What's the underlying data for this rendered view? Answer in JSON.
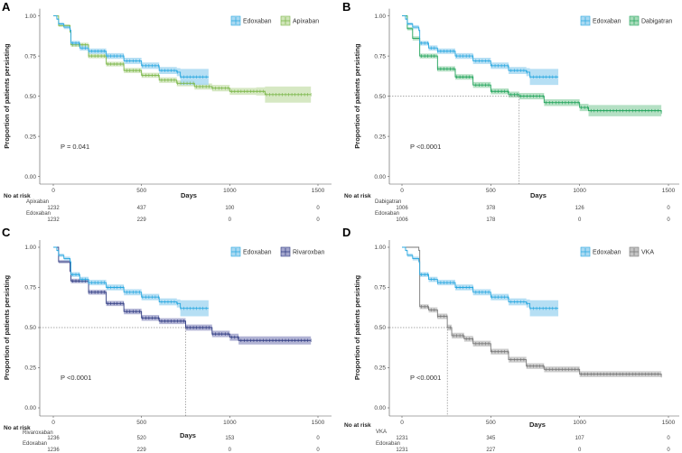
{
  "chart_data": [
    {
      "type": "line",
      "subtype": "kaplan-meier",
      "panel": "A",
      "xlabel": "Days",
      "ylabel": "Proportion of patients persisting",
      "xlim": [
        0,
        1500
      ],
      "ylim": [
        0,
        1
      ],
      "xticks": [
        "0",
        "500",
        "1000",
        "1500"
      ],
      "yticks": [
        "0.00",
        "0.25",
        "0.50",
        "0.75",
        "1.00"
      ],
      "p_value": "P = 0.041",
      "median_days": null,
      "legend_position": "top-right",
      "series": [
        {
          "name": "Edoxaban",
          "color": "#29a8e0",
          "band_color": "#a9d9f2",
          "points": [
            [
              0,
              1
            ],
            [
              20,
              0.98
            ],
            [
              30,
              0.95
            ],
            [
              60,
              0.93
            ],
            [
              95,
              0.91
            ],
            [
              100,
              0.83
            ],
            [
              150,
              0.8
            ],
            [
              200,
              0.78
            ],
            [
              300,
              0.75
            ],
            [
              400,
              0.72
            ],
            [
              500,
              0.69
            ],
            [
              600,
              0.66
            ],
            [
              700,
              0.65
            ],
            [
              720,
              0.62
            ],
            [
              880,
              0.62
            ]
          ],
          "ci": [
            0,
            0.005,
            0.01,
            0.012,
            0.014,
            0.015,
            0.016,
            0.017,
            0.018,
            0.019,
            0.02,
            0.022,
            0.025,
            0.05,
            0.06
          ]
        },
        {
          "name": "Apixaban",
          "color": "#7ab648",
          "band_color": "#cfe4b8",
          "points": [
            [
              0,
              1
            ],
            [
              30,
              0.94
            ],
            [
              95,
              0.9
            ],
            [
              100,
              0.82
            ],
            [
              200,
              0.75
            ],
            [
              300,
              0.7
            ],
            [
              400,
              0.66
            ],
            [
              500,
              0.63
            ],
            [
              600,
              0.6
            ],
            [
              700,
              0.58
            ],
            [
              800,
              0.56
            ],
            [
              900,
              0.55
            ],
            [
              1000,
              0.53
            ],
            [
              1150,
              0.53
            ],
            [
              1200,
              0.51
            ],
            [
              1460,
              0.51
            ]
          ],
          "ci": [
            0,
            0.008,
            0.01,
            0.013,
            0.014,
            0.015,
            0.016,
            0.016,
            0.017,
            0.018,
            0.019,
            0.02,
            0.022,
            0.025,
            0.05,
            0.05
          ]
        }
      ],
      "risk_table": {
        "header": "No at risk",
        "rows": [
          {
            "label": "Apixaban",
            "values": [
              "1232",
              "437",
              "100",
              "0"
            ]
          },
          {
            "label": "Edoxaban",
            "values": [
              "1232",
              "229",
              "0",
              "0"
            ]
          }
        ]
      }
    },
    {
      "type": "line",
      "subtype": "kaplan-meier",
      "panel": "B",
      "xlabel": "Days",
      "ylabel": "Proportion of patients persisting",
      "xlim": [
        0,
        1500
      ],
      "ylim": [
        0,
        1
      ],
      "xticks": [
        "0",
        "500",
        "1000",
        "1500"
      ],
      "yticks": [
        "0.00",
        "0.25",
        "0.50",
        "0.75",
        "1.00"
      ],
      "p_value": "P <0.0001",
      "median_days": 660,
      "legend_position": "top-right",
      "series": [
        {
          "name": "Edoxaban",
          "color": "#29a8e0",
          "band_color": "#a9d9f2",
          "points": [
            [
              0,
              1
            ],
            [
              20,
              0.98
            ],
            [
              30,
              0.95
            ],
            [
              60,
              0.93
            ],
            [
              95,
              0.91
            ],
            [
              100,
              0.83
            ],
            [
              150,
              0.8
            ],
            [
              200,
              0.78
            ],
            [
              300,
              0.75
            ],
            [
              400,
              0.72
            ],
            [
              500,
              0.69
            ],
            [
              600,
              0.66
            ],
            [
              700,
              0.65
            ],
            [
              720,
              0.62
            ],
            [
              880,
              0.62
            ]
          ],
          "ci": [
            0,
            0.005,
            0.01,
            0.012,
            0.014,
            0.015,
            0.016,
            0.017,
            0.018,
            0.019,
            0.02,
            0.022,
            0.025,
            0.05,
            0.06
          ]
        },
        {
          "name": "Dabigatran",
          "color": "#1fa35a",
          "band_color": "#a8dbba",
          "points": [
            [
              0,
              1
            ],
            [
              30,
              0.92
            ],
            [
              60,
              0.86
            ],
            [
              100,
              0.75
            ],
            [
              200,
              0.67
            ],
            [
              300,
              0.62
            ],
            [
              400,
              0.57
            ],
            [
              500,
              0.53
            ],
            [
              600,
              0.51
            ],
            [
              660,
              0.5
            ],
            [
              800,
              0.46
            ],
            [
              1000,
              0.43
            ],
            [
              1050,
              0.41
            ],
            [
              1460,
              0.4
            ]
          ],
          "ci": [
            0,
            0.01,
            0.013,
            0.015,
            0.016,
            0.017,
            0.018,
            0.018,
            0.019,
            0.02,
            0.021,
            0.023,
            0.035,
            0.04
          ]
        }
      ],
      "risk_table": {
        "header": "No at risk",
        "rows": [
          {
            "label": "Dabigatran",
            "values": [
              "1006",
              "378",
              "126",
              "0"
            ]
          },
          {
            "label": "Edoxaban",
            "values": [
              "1006",
              "178",
              "0",
              "0"
            ]
          }
        ]
      }
    },
    {
      "type": "line",
      "subtype": "kaplan-meier",
      "panel": "C",
      "xlabel": "Days",
      "ylabel": "Proportion of patients persisting",
      "xlim": [
        0,
        1500
      ],
      "ylim": [
        0,
        1
      ],
      "xticks": [
        "0",
        "500",
        "1000",
        "1500"
      ],
      "yticks": [
        "0.00",
        "0.25",
        "0.50",
        "0.75",
        "1.00"
      ],
      "p_value": "P <0.0001",
      "median_days": 750,
      "legend_position": "top-right",
      "series": [
        {
          "name": "Edoxaban",
          "color": "#29a8e0",
          "band_color": "#a9d9f2",
          "points": [
            [
              0,
              1
            ],
            [
              20,
              0.98
            ],
            [
              30,
              0.95
            ],
            [
              60,
              0.93
            ],
            [
              95,
              0.91
            ],
            [
              100,
              0.83
            ],
            [
              150,
              0.8
            ],
            [
              200,
              0.78
            ],
            [
              300,
              0.75
            ],
            [
              400,
              0.72
            ],
            [
              500,
              0.69
            ],
            [
              600,
              0.66
            ],
            [
              700,
              0.65
            ],
            [
              720,
              0.62
            ],
            [
              880,
              0.62
            ]
          ],
          "ci": [
            0,
            0.005,
            0.01,
            0.012,
            0.014,
            0.015,
            0.016,
            0.017,
            0.018,
            0.019,
            0.02,
            0.022,
            0.025,
            0.05,
            0.06
          ]
        },
        {
          "name": "Rivaroxban",
          "color": "#2e3a80",
          "band_color": "#a3a6cc",
          "points": [
            [
              0,
              1
            ],
            [
              30,
              0.91
            ],
            [
              95,
              0.85
            ],
            [
              100,
              0.79
            ],
            [
              200,
              0.72
            ],
            [
              300,
              0.65
            ],
            [
              400,
              0.6
            ],
            [
              500,
              0.56
            ],
            [
              600,
              0.54
            ],
            [
              750,
              0.5
            ],
            [
              900,
              0.46
            ],
            [
              1000,
              0.44
            ],
            [
              1050,
              0.42
            ],
            [
              1460,
              0.42
            ]
          ],
          "ci": [
            0,
            0.01,
            0.012,
            0.014,
            0.015,
            0.016,
            0.017,
            0.018,
            0.018,
            0.019,
            0.02,
            0.022,
            0.025,
            0.03
          ]
        }
      ],
      "risk_table": {
        "header": "No at risk",
        "rows": [
          {
            "label": "Rivaroxaban",
            "values": [
              "1236",
              "520",
              "153",
              "0"
            ]
          },
          {
            "label": "Edoxaban",
            "values": [
              "1236",
              "229",
              "0",
              "0"
            ]
          }
        ]
      }
    },
    {
      "type": "line",
      "subtype": "kaplan-meier",
      "panel": "D",
      "xlabel": "Days",
      "ylabel": "Proportion of patients persisting",
      "xlim": [
        0,
        1500
      ],
      "ylim": [
        0,
        1
      ],
      "xticks": [
        "0",
        "500",
        "1000",
        "1500"
      ],
      "yticks": [
        "0.00",
        "0.25",
        "0.50",
        "0.75",
        "1.00"
      ],
      "p_value": "P <0.0001",
      "median_days": 255,
      "legend_position": "top-right",
      "series": [
        {
          "name": "Edoxaban",
          "color": "#29a8e0",
          "band_color": "#a9d9f2",
          "points": [
            [
              0,
              1
            ],
            [
              20,
              0.98
            ],
            [
              30,
              0.95
            ],
            [
              60,
              0.93
            ],
            [
              95,
              0.91
            ],
            [
              100,
              0.83
            ],
            [
              150,
              0.8
            ],
            [
              200,
              0.78
            ],
            [
              300,
              0.75
            ],
            [
              400,
              0.72
            ],
            [
              500,
              0.69
            ],
            [
              600,
              0.66
            ],
            [
              700,
              0.65
            ],
            [
              720,
              0.62
            ],
            [
              880,
              0.62
            ]
          ],
          "ci": [
            0,
            0.005,
            0.01,
            0.012,
            0.014,
            0.015,
            0.016,
            0.017,
            0.018,
            0.019,
            0.02,
            0.022,
            0.025,
            0.05,
            0.06
          ]
        },
        {
          "name": "VKA",
          "color": "#777777",
          "band_color": "#c4c4c4",
          "points": [
            [
              0,
              1
            ],
            [
              95,
              0.98
            ],
            [
              100,
              0.63
            ],
            [
              150,
              0.61
            ],
            [
              200,
              0.57
            ],
            [
              255,
              0.5
            ],
            [
              280,
              0.45
            ],
            [
              350,
              0.43
            ],
            [
              400,
              0.4
            ],
            [
              500,
              0.35
            ],
            [
              600,
              0.3
            ],
            [
              700,
              0.26
            ],
            [
              800,
              0.24
            ],
            [
              1000,
              0.21
            ],
            [
              1460,
              0.2
            ]
          ],
          "ci": [
            0,
            0.005,
            0.015,
            0.016,
            0.017,
            0.018,
            0.018,
            0.018,
            0.018,
            0.018,
            0.018,
            0.018,
            0.018,
            0.018,
            0.02
          ]
        }
      ],
      "risk_table": {
        "header": "No at risk",
        "rows": [
          {
            "label": "VKA",
            "values": [
              "1231",
              "345",
              "107",
              "0"
            ]
          },
          {
            "label": "Edoxaban",
            "values": [
              "1231",
              "227",
              "0",
              "0"
            ]
          }
        ]
      }
    }
  ]
}
